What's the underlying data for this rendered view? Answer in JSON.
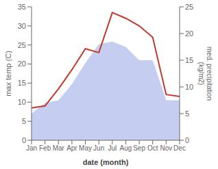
{
  "chart_data": {
    "type": "line",
    "categories": [
      "Jan",
      "Feb",
      "Mar",
      "Apr",
      "May",
      "Jun",
      "Jul",
      "Aug",
      "Sep",
      "Oct",
      "Nov",
      "Dec"
    ],
    "series": [
      {
        "type": "area",
        "color": "#c5cef0",
        "axis": "y2",
        "values": [
          5.0,
          7.0,
          7.5,
          10.5,
          14.5,
          18.0,
          18.5,
          17.5,
          15.0,
          15.0,
          7.5,
          7.5
        ]
      },
      {
        "type": "line",
        "color": "#c0392b",
        "values": [
          8.5,
          9.0,
          13.5,
          18.5,
          24.0,
          23.0,
          33.5,
          32.0,
          30.0,
          27.0,
          12.0,
          11.5
        ]
      }
    ],
    "ylim": [
      0,
      35
    ],
    "yticks": [
      0,
      5,
      10,
      15,
      20,
      25,
      30,
      35
    ],
    "y2lim": [
      0,
      25
    ],
    "y2ticks": [
      0,
      5,
      10,
      15,
      20,
      25
    ],
    "xlabel": "date (month)",
    "ylabel": "max temp (C)",
    "y2label": "med. precipitation\n(kg/m2)",
    "grid": false
  }
}
